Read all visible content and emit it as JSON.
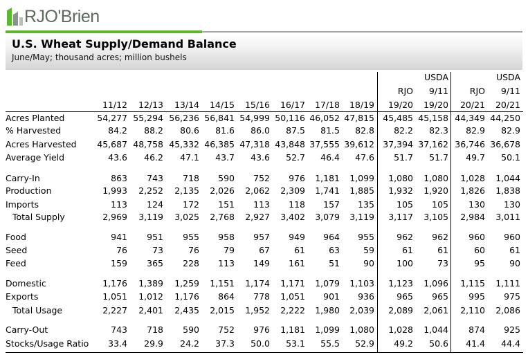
{
  "brand": {
    "name": "RJO'Brien"
  },
  "header": {
    "title": "U.S. Wheat Supply/Demand Balance",
    "subtitle": "June/May; thousand acres; million bushels"
  },
  "columns": [
    {
      "h1": "",
      "h2": "",
      "h3": "11/12"
    },
    {
      "h1": "",
      "h2": "",
      "h3": "12/13"
    },
    {
      "h1": "",
      "h2": "",
      "h3": "13/14"
    },
    {
      "h1": "",
      "h2": "",
      "h3": "14/15"
    },
    {
      "h1": "",
      "h2": "",
      "h3": "15/16"
    },
    {
      "h1": "",
      "h2": "",
      "h3": "16/17"
    },
    {
      "h1": "",
      "h2": "",
      "h3": "17/18"
    },
    {
      "h1": "",
      "h2": "",
      "h3": "18/19"
    },
    {
      "h1": "",
      "h2": "RJO",
      "h3": "19/20"
    },
    {
      "h1": "USDA",
      "h2": "9/11",
      "h3": "19/20"
    },
    {
      "h1": "",
      "h2": "RJO",
      "h3": "20/21"
    },
    {
      "h1": "USDA",
      "h2": "9/11",
      "h3": "20/21"
    }
  ],
  "rows": [
    {
      "label": "Acres Planted",
      "values": [
        "54,277",
        "55,294",
        "56,236",
        "56,841",
        "54,999",
        "50,116",
        "46,052",
        "47,815",
        "45,485",
        "45,158",
        "44,349",
        "44,250"
      ]
    },
    {
      "label": "% Harvested",
      "values": [
        "84.2",
        "88.2",
        "80.6",
        "81.6",
        "86.0",
        "87.5",
        "81.5",
        "82.8",
        "82.2",
        "82.3",
        "82.9",
        "82.9"
      ]
    },
    {
      "label": "Acres Harvested",
      "values": [
        "45,687",
        "48,758",
        "45,332",
        "46,385",
        "47,318",
        "43,848",
        "37,555",
        "39,612",
        "37,394",
        "37,162",
        "36,746",
        "36,678"
      ]
    },
    {
      "label": "Average Yield",
      "values": [
        "43.6",
        "46.2",
        "47.1",
        "43.7",
        "43.6",
        "52.7",
        "46.4",
        "47.6",
        "51.7",
        "51.7",
        "49.7",
        "50.1"
      ]
    },
    {
      "label": "Carry-In",
      "values": [
        "863",
        "743",
        "718",
        "590",
        "752",
        "976",
        "1,181",
        "1,099",
        "1,080",
        "1,080",
        "1,028",
        "1,044"
      ]
    },
    {
      "label": "Production",
      "values": [
        "1,993",
        "2,252",
        "2,135",
        "2,026",
        "2,062",
        "2,309",
        "1,741",
        "1,885",
        "1,932",
        "1,920",
        "1,826",
        "1,838"
      ]
    },
    {
      "label": "Imports",
      "values": [
        "113",
        "124",
        "172",
        "151",
        "113",
        "118",
        "157",
        "135",
        "105",
        "105",
        "130",
        "130"
      ]
    },
    {
      "label": "Total Supply",
      "indent": true,
      "values": [
        "2,969",
        "3,119",
        "3,025",
        "2,768",
        "2,927",
        "3,402",
        "3,079",
        "3,119",
        "3,117",
        "3,105",
        "2,984",
        "3,011"
      ]
    },
    {
      "label": "Food",
      "values": [
        "941",
        "951",
        "955",
        "958",
        "957",
        "949",
        "964",
        "955",
        "962",
        "962",
        "960",
        "960"
      ]
    },
    {
      "label": "Seed",
      "values": [
        "76",
        "73",
        "76",
        "79",
        "67",
        "61",
        "63",
        "59",
        "61",
        "61",
        "60",
        "61"
      ]
    },
    {
      "label": "Feed",
      "values": [
        "159",
        "365",
        "228",
        "113",
        "149",
        "161",
        "51",
        "90",
        "100",
        "73",
        "95",
        "90"
      ]
    },
    {
      "label": "Domestic",
      "values": [
        "1,176",
        "1,389",
        "1,259",
        "1,151",
        "1,174",
        "1,171",
        "1,079",
        "1,103",
        "1,123",
        "1,096",
        "1,115",
        "1,111"
      ]
    },
    {
      "label": "Exports",
      "values": [
        "1,051",
        "1,012",
        "1,176",
        "864",
        "778",
        "1,051",
        "901",
        "936",
        "965",
        "965",
        "995",
        "975"
      ]
    },
    {
      "label": "Total Usage",
      "indent": true,
      "values": [
        "2,227",
        "2,401",
        "2,435",
        "2,015",
        "1,952",
        "2,222",
        "1,980",
        "2,039",
        "2,089",
        "2,061",
        "2,110",
        "2,086"
      ]
    },
    {
      "label": "Carry-Out",
      "values": [
        "743",
        "718",
        "590",
        "752",
        "976",
        "1,181",
        "1,099",
        "1,080",
        "1,028",
        "1,044",
        "874",
        "925"
      ]
    },
    {
      "label": "Stocks/Usage Ratio",
      "values": [
        "33.4",
        "29.9",
        "24.2",
        "37.3",
        "50.0",
        "53.1",
        "55.5",
        "52.9",
        "49.2",
        "50.6",
        "41.4",
        "44.4"
      ]
    }
  ],
  "colors": {
    "accent_green": "#5cb82e",
    "logo_gray": "#5d6a5e"
  }
}
